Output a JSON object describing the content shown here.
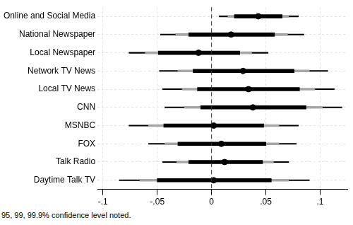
{
  "chart_data": {
    "type": "coefficient",
    "orientation": "horizontal",
    "categories": [
      "Online and Social Media",
      "National Newspaper",
      "Local Newspaper",
      "Network TV News",
      "Local TV News",
      "CNN",
      "MSNBC",
      "FOX",
      "Talk Radio",
      "Daytime Talk TV"
    ],
    "values": [
      0.043,
      0.018,
      -0.012,
      0.029,
      0.034,
      0.038,
      0.002,
      0.009,
      0.012,
      0.002
    ],
    "color": "#000000",
    "intervals": [
      {
        "level": 95,
        "color": "#000000",
        "lower": [
          0.021,
          -0.021,
          -0.049,
          -0.017,
          -0.013,
          -0.01,
          -0.044,
          -0.031,
          -0.021,
          -0.05
        ],
        "upper": [
          0.065,
          0.058,
          0.026,
          0.076,
          0.081,
          0.087,
          0.048,
          0.05,
          0.047,
          0.055
        ]
      },
      {
        "level": 99,
        "color": "#a6a6a6",
        "lower": [
          0.015,
          -0.033,
          -0.061,
          -0.031,
          -0.027,
          -0.025,
          -0.058,
          -0.043,
          -0.032,
          -0.066
        ],
        "upper": [
          0.071,
          0.07,
          0.037,
          0.09,
          0.095,
          0.102,
          0.062,
          0.062,
          0.057,
          0.071
        ]
      },
      {
        "level": 99.9,
        "color": "#000000",
        "lower": [
          0.007,
          -0.047,
          -0.076,
          -0.048,
          -0.045,
          -0.043,
          -0.076,
          -0.058,
          -0.045,
          -0.085
        ],
        "upper": [
          0.08,
          0.085,
          0.052,
          0.107,
          0.113,
          0.12,
          0.08,
          0.078,
          0.071,
          0.09
        ]
      }
    ],
    "reference_line": 0,
    "xlim": [
      -0.105,
      0.125
    ],
    "xticks": [
      {
        "value": -0.1,
        "label": "-.1"
      },
      {
        "value": -0.05,
        "label": "-.05"
      },
      0,
      {
        "value": 0.05,
        "label": ".05"
      },
      {
        "value": 0.1,
        "label": ".1"
      }
    ],
    "grid": true,
    "note": "95, 99, 99.9% confidence level noted."
  }
}
